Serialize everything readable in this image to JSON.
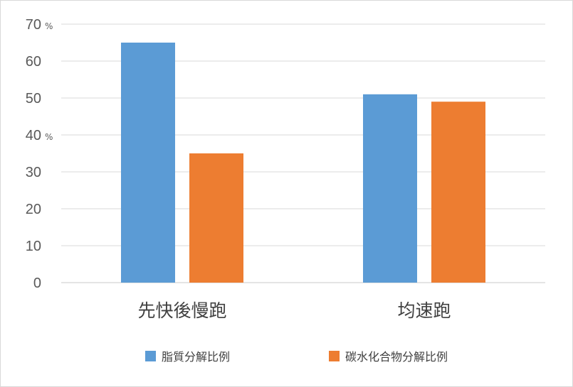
{
  "chart_data": {
    "type": "bar",
    "categories": [
      "先快後慢跑",
      "均速跑"
    ],
    "series": [
      {
        "name": "脂質分解比例",
        "values": [
          65,
          51
        ],
        "color": "#5b9bd5"
      },
      {
        "name": "碳水化合物分解比例",
        "values": [
          35,
          49
        ],
        "color": "#ed7d31"
      }
    ],
    "ylim": [
      0,
      70
    ],
    "yticks": [
      0,
      10,
      20,
      30,
      40,
      50,
      60,
      70
    ],
    "ytick_labels": [
      "0",
      "10",
      "20",
      "30",
      "40",
      "50",
      "60",
      "70"
    ],
    "unit_marks": [
      "%",
      "%"
    ],
    "grid": true,
    "legend": "bottom"
  }
}
